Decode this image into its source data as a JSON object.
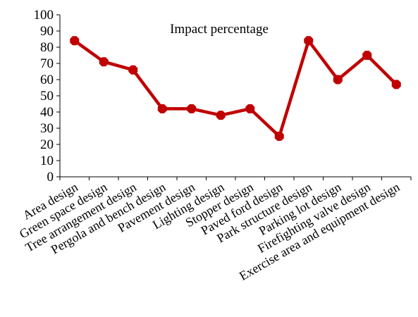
{
  "chart_data": {
    "type": "line",
    "title": "Impact percentage",
    "categories": [
      "Area design",
      "Green space design",
      "Tree arrangement design",
      "Pergola and bench design",
      "Pavement design",
      "Lighting design",
      "Stopper design",
      "Paved ford design",
      "Park structure design",
      "Parking lot design",
      "Firefighting valve design",
      "Exercise area and equipment design"
    ],
    "series": [
      {
        "values": [
          84,
          71,
          66,
          42,
          42,
          38,
          42,
          25,
          84,
          60,
          75,
          57
        ],
        "color": "#c00000"
      }
    ],
    "ylim": [
      0,
      100
    ],
    "yticks": [
      "0",
      "10",
      "20",
      "30",
      "40",
      "50",
      "60",
      "70",
      "80",
      "90",
      "100"
    ],
    "grid": false,
    "xlabel": "",
    "ylabel": ""
  }
}
